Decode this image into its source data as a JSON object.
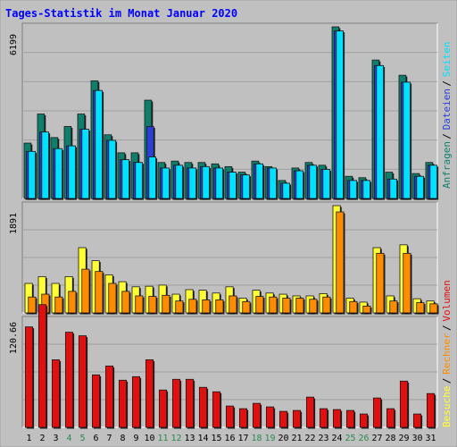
{
  "title": "Tages-Statistik im Monat Januar 2020",
  "colors": {
    "background": "#c0c0c0",
    "title": "#0000ff",
    "anfragen": "#0f7f6b",
    "dateien": "#2a3fd6",
    "seiten": "#00e0ff",
    "besuche": "#ffff33",
    "rechner": "#ff8c00",
    "volumen": "#e01010",
    "weekend_label": "#2a8a50"
  },
  "chart_data": {
    "type": "bar",
    "x": [
      "1",
      "2",
      "3",
      "4",
      "5",
      "6",
      "7",
      "8",
      "9",
      "10",
      "11",
      "12",
      "13",
      "14",
      "15",
      "16",
      "17",
      "18",
      "19",
      "20",
      "21",
      "22",
      "23",
      "24",
      "25",
      "26",
      "27",
      "28",
      "29",
      "30",
      "31"
    ],
    "weekend_days": [
      "4",
      "5",
      "11",
      "12",
      "18",
      "19",
      "25",
      "26"
    ],
    "legend_right": [
      {
        "group": "top",
        "items": [
          "Anfragen",
          "/",
          "Dateien",
          "/",
          "Seiten"
        ]
      },
      {
        "group": "bottom",
        "items": [
          "Besuche",
          "/",
          "Rechner",
          "/",
          "Volumen"
        ]
      }
    ],
    "panels": [
      {
        "name": "top",
        "ymax_label": "6199",
        "ymax": 6199,
        "series": [
          {
            "name": "Anfragen",
            "values": [
              2000,
              3050,
              2200,
              2600,
              3050,
              4250,
              2300,
              1650,
              1650,
              3550,
              1300,
              1350,
              1300,
              1300,
              1250,
              1150,
              950,
              1350,
              1150,
              650,
              1100,
              1300,
              1200,
              6199,
              800,
              750,
              5000,
              950,
              4450,
              900,
              1300
            ]
          },
          {
            "name": "Dateien",
            "values": [
              1700,
              2400,
              1800,
              1900,
              2500,
              3900,
              2100,
              1400,
              1300,
              2600,
              1100,
              1200,
              1100,
              1150,
              1100,
              950,
              850,
              1250,
              1100,
              550,
              1000,
              1200,
              1050,
              6050,
              650,
              650,
              4800,
              700,
              4200,
              800,
              1200
            ]
          },
          {
            "name": "Seiten",
            "values": [
              1700,
              2400,
              1800,
              1900,
              2500,
              3900,
              2100,
              1400,
              1300,
              1500,
              1100,
              1200,
              1100,
              1150,
              1100,
              950,
              850,
              1250,
              1100,
              550,
              1000,
              1200,
              1050,
              6050,
              650,
              650,
              4800,
              700,
              4200,
              800,
              1200
            ]
          }
        ]
      },
      {
        "name": "middle",
        "ymax_label": "1891",
        "ymax": 1891,
        "series": [
          {
            "name": "Besuche",
            "values": [
              520,
              640,
              520,
              640,
              1150,
              920,
              670,
              550,
              460,
              470,
              490,
              330,
              410,
              400,
              350,
              460,
              260,
              400,
              350,
              330,
              300,
              300,
              340,
              1891,
              260,
              190,
              1150,
              300,
              1200,
              250,
              210
            ]
          },
          {
            "name": "Rechner",
            "values": [
              280,
              330,
              280,
              380,
              770,
              730,
              520,
              380,
              300,
              290,
              310,
              210,
              240,
              230,
              230,
              300,
              200,
              290,
              280,
              260,
              260,
              240,
              280,
              1780,
              200,
              120,
              1050,
              210,
              1050,
              180,
              160
            ]
          }
        ]
      },
      {
        "name": "bottom",
        "ymax_label": "120.66",
        "ymax": 120.66,
        "series": [
          {
            "name": "Volumen",
            "values": [
              113,
              138,
              76,
              107,
              103,
              59,
              69,
              53,
              57,
              76,
              42,
              54,
              54,
              45,
              40,
              24,
              21,
              27,
              23,
              18,
              19,
              34,
              21,
              20,
              19,
              15,
              33,
              21,
              52,
              15,
              38
            ]
          }
        ]
      }
    ],
    "grid": true
  }
}
